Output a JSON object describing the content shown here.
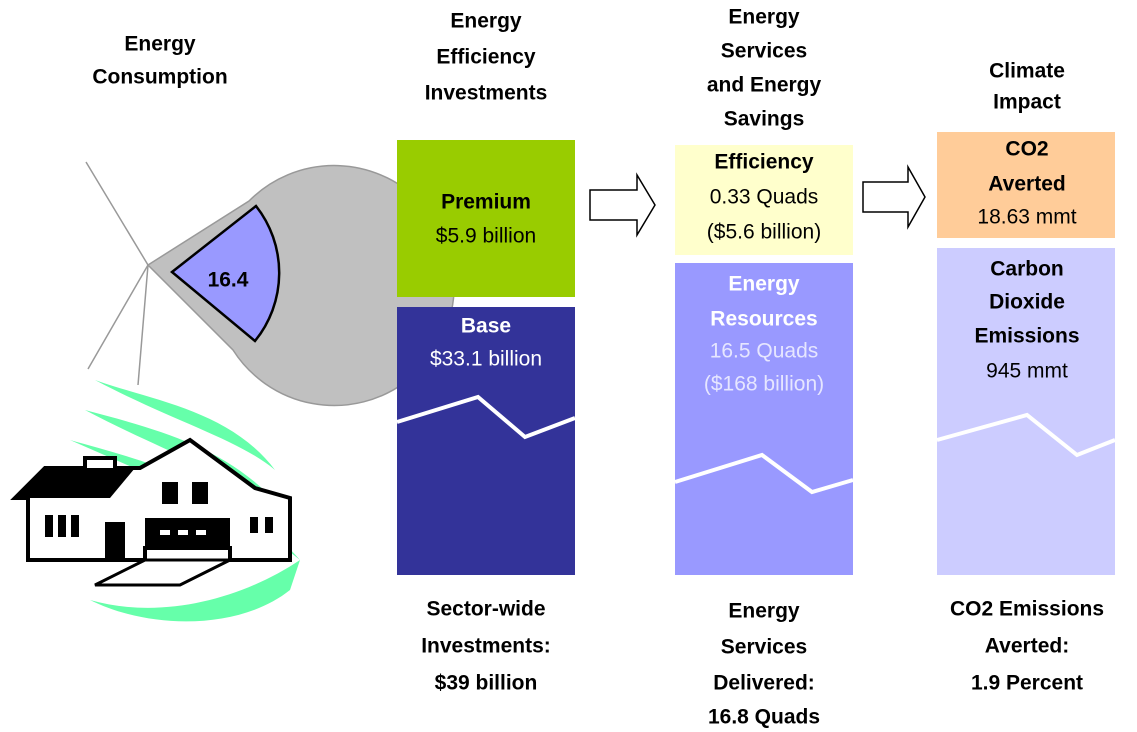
{
  "consumption": {
    "title": [
      "Energy",
      "Consumption"
    ],
    "pie_label": "16.4"
  },
  "investments": {
    "title": [
      "Energy",
      "Efficiency",
      "Investments"
    ],
    "premium": [
      "Premium",
      "$5.9 billion"
    ],
    "base": [
      "Base",
      "$33.1 billion"
    ],
    "footer": [
      "Sector-wide",
      "Investments:",
      "$39 billion"
    ]
  },
  "services": {
    "title": [
      "Energy",
      "Services",
      "and Energy",
      "Savings"
    ],
    "efficiency": [
      "Efficiency",
      "0.33 Quads",
      "($5.6 billion)"
    ],
    "resources": [
      "Energy",
      "Resources",
      "16.5 Quads",
      "($168 billion)"
    ],
    "footer": [
      "Energy",
      "Services",
      "Delivered:",
      "16.8 Quads"
    ]
  },
  "climate": {
    "title": [
      "Climate",
      "Impact"
    ],
    "averted": [
      "CO2",
      "Averted",
      "18.63 mmt"
    ],
    "emissions": [
      "Carbon",
      "Dioxide",
      "Emissions",
      "945 mmt"
    ],
    "footer": [
      "CO2 Emissions",
      "Averted:",
      "1.9 Percent"
    ]
  }
}
